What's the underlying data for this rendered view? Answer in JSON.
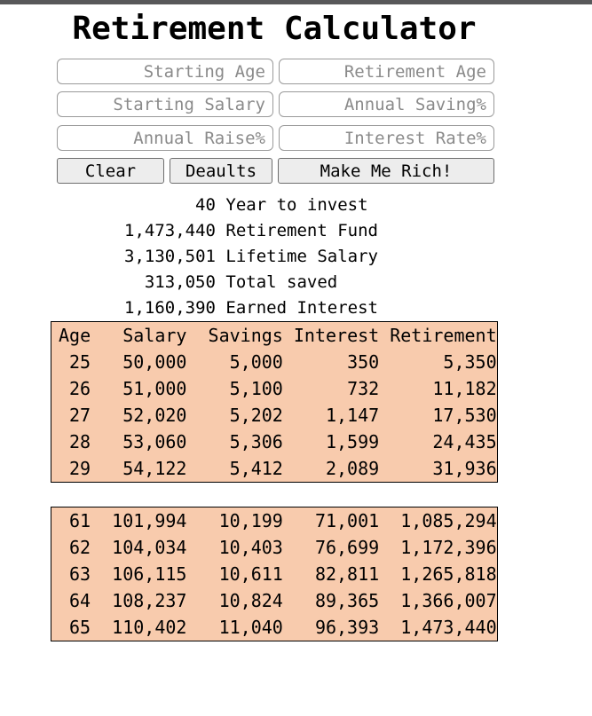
{
  "window": {
    "top_bar_color": "#58585a",
    "background_color": "#ffffff"
  },
  "title": "Retirement Calculator",
  "inputs": [
    {
      "placeholder": "Starting Age"
    },
    {
      "placeholder": "Retirement Age"
    },
    {
      "placeholder": "Starting Salary"
    },
    {
      "placeholder": "Annual Saving%"
    },
    {
      "placeholder": "Annual Raise%"
    },
    {
      "placeholder": "Interest Rate%"
    }
  ],
  "buttons": {
    "clear": "Clear",
    "defaults": "Deaults",
    "make_me_rich": "Make Me Rich!"
  },
  "results": [
    {
      "value": "40",
      "label": "Year to invest"
    },
    {
      "value": "1,473,440",
      "label": "Retirement Fund"
    },
    {
      "value": "3,130,501",
      "label": "Lifetime Salary"
    },
    {
      "value": "313,050",
      "label": "Total saved"
    },
    {
      "value": "1,160,390",
      "label": "Earned Interest"
    }
  ],
  "table": {
    "background_color": "#F8CBAD",
    "border_color": "#000000",
    "headers": [
      "Age",
      "Salary",
      "Savings",
      "Interest",
      "Retirement"
    ],
    "early_rows": [
      [
        "25",
        "50,000",
        "5,000",
        "350",
        "5,350"
      ],
      [
        "26",
        "51,000",
        "5,100",
        "732",
        "11,182"
      ],
      [
        "27",
        "52,020",
        "5,202",
        "1,147",
        "17,530"
      ],
      [
        "28",
        "53,060",
        "5,306",
        "1,599",
        "24,435"
      ],
      [
        "29",
        "54,122",
        "5,412",
        "2,089",
        "31,936"
      ]
    ],
    "late_rows": [
      [
        "61",
        "101,994",
        "10,199",
        "71,001",
        "1,085,294"
      ],
      [
        "62",
        "104,034",
        "10,403",
        "76,699",
        "1,172,396"
      ],
      [
        "63",
        "106,115",
        "10,611",
        "82,811",
        "1,265,818"
      ],
      [
        "64",
        "108,237",
        "10,824",
        "89,365",
        "1,366,007"
      ],
      [
        "65",
        "110,402",
        "11,040",
        "96,393",
        "1,473,440"
      ]
    ]
  }
}
